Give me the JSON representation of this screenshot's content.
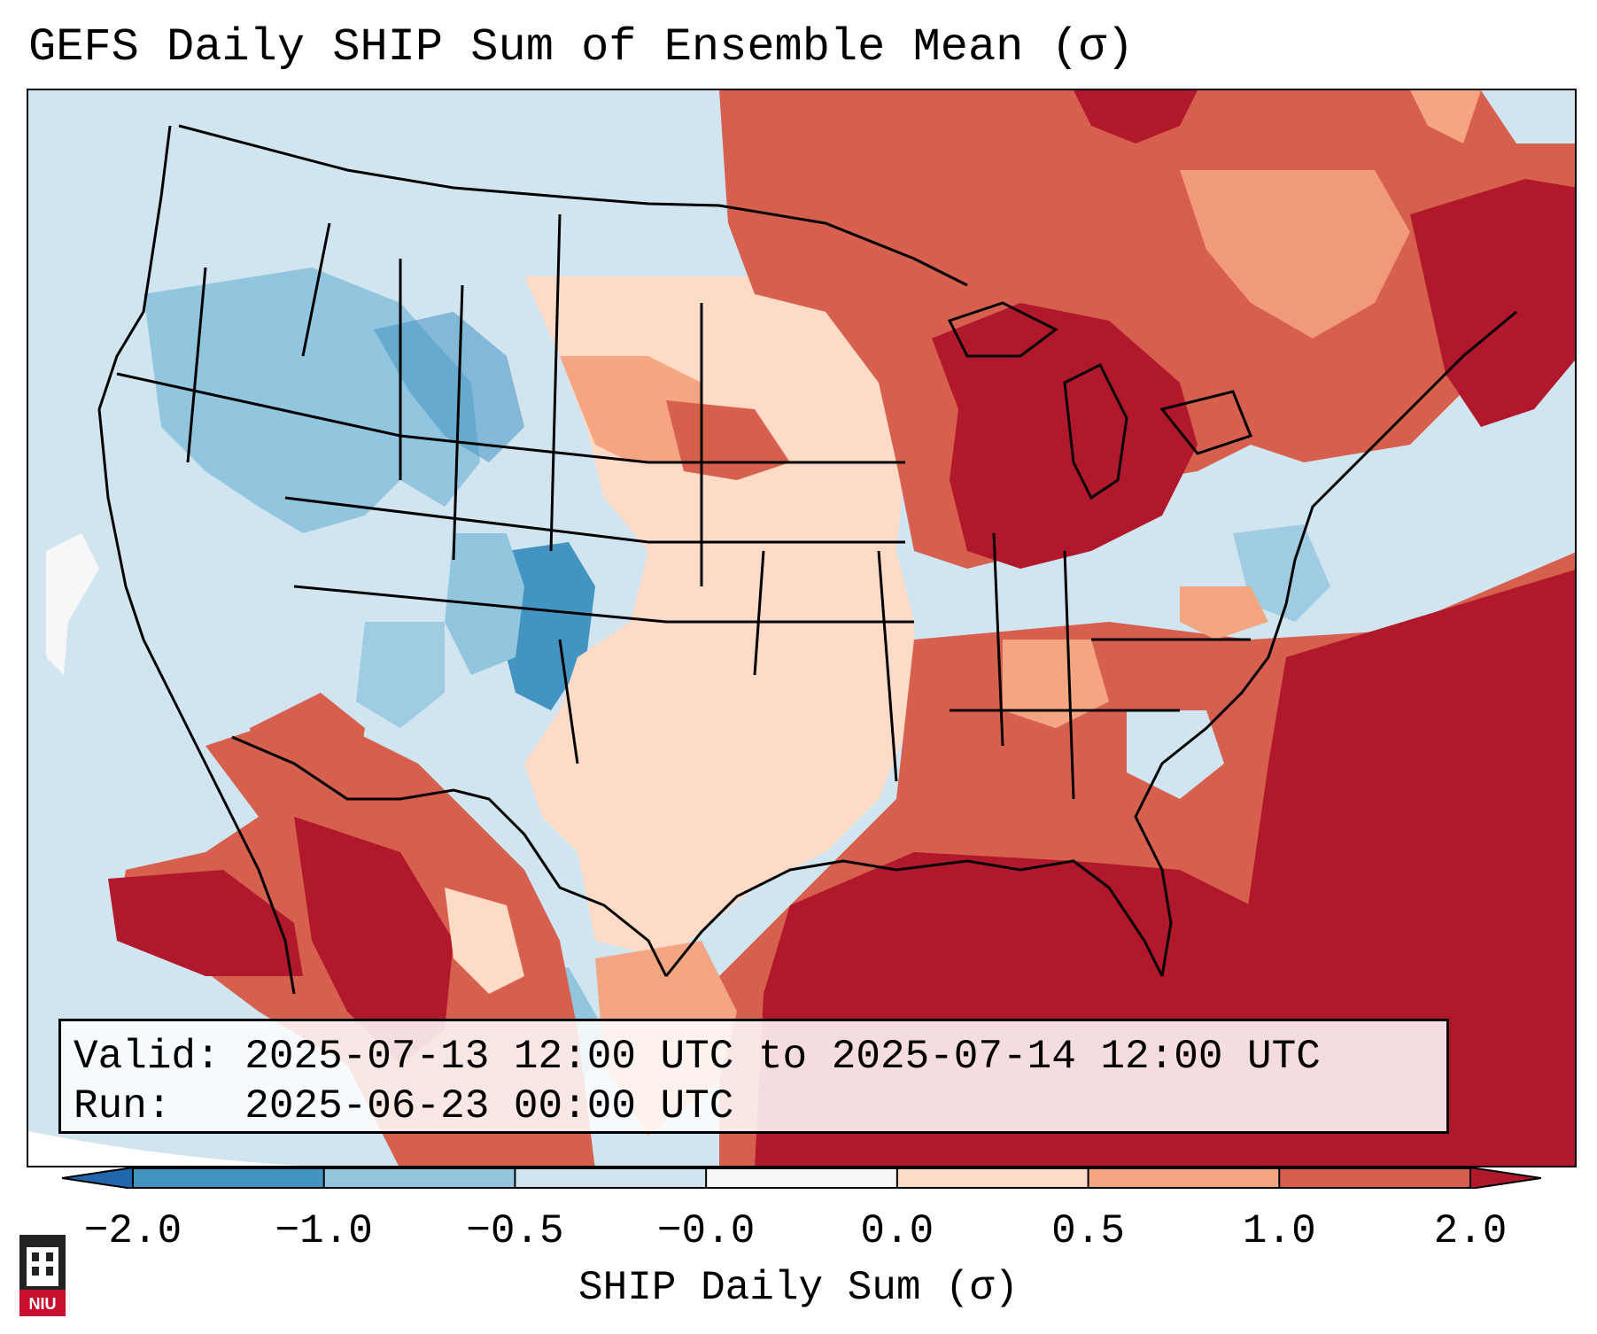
{
  "title": "GEFS Daily SHIP Sum of Ensemble Mean (σ)",
  "info": {
    "valid_key": "Valid:",
    "valid_value": "2025-07-13 12:00 UTC to 2025-07-14 12:00 UTC",
    "run_key": "Run:",
    "run_value": "2025-06-23 00:00 UTC"
  },
  "colorbar": {
    "label": "SHIP Daily Sum (σ)",
    "ticks": [
      "−2.0",
      "−1.0",
      "−0.5",
      "−0.0",
      "0.0",
      "0.5",
      "1.0",
      "2.0"
    ],
    "colors": [
      "#4393c3",
      "#92c5de",
      "#d1e5f0",
      "#f7f7f7",
      "#fddbc7",
      "#f4a582",
      "#d6604d",
      "#b2182b"
    ],
    "extend_low_color": "#2166ac",
    "extend_high_color": "#b2182b"
  },
  "map": {
    "region": "Contiguous United States",
    "color_scale": "diverging blue-red"
  },
  "logo": {
    "text": "NIU"
  }
}
